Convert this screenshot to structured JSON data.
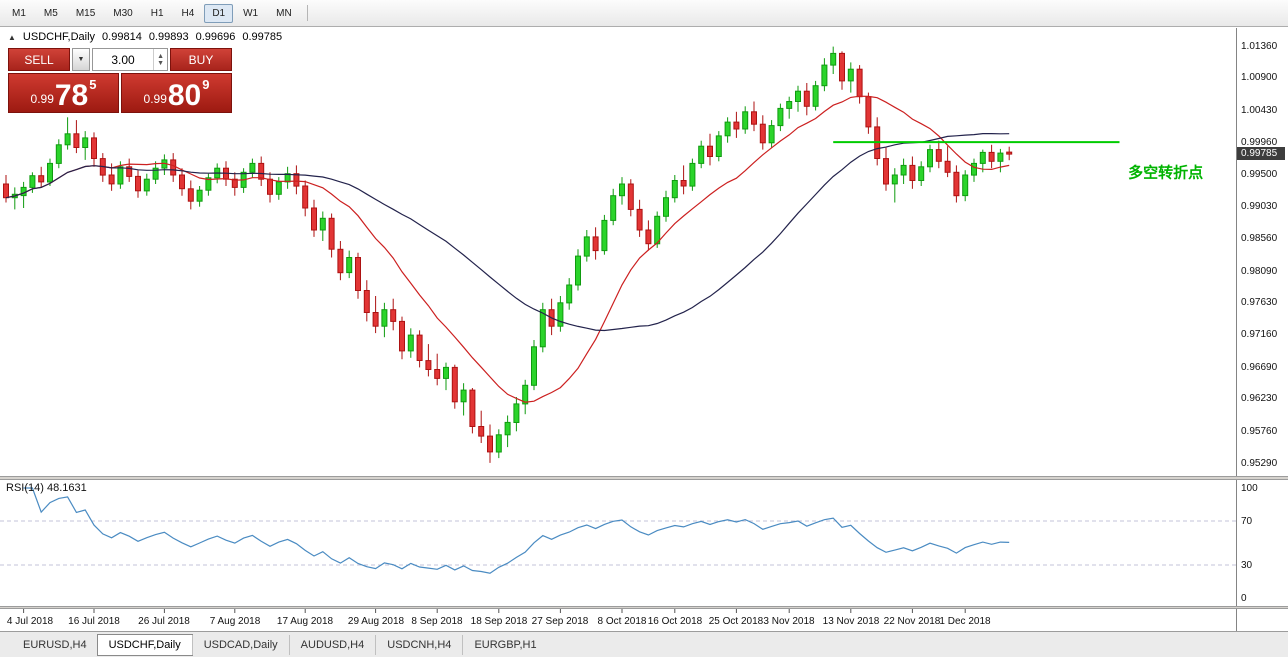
{
  "toolbar": {
    "timeframes": [
      {
        "label": "M1",
        "active": false
      },
      {
        "label": "M5",
        "active": false
      },
      {
        "label": "M15",
        "active": false
      },
      {
        "label": "M30",
        "active": false
      },
      {
        "label": "H1",
        "active": false
      },
      {
        "label": "H4",
        "active": false
      },
      {
        "label": "D1",
        "active": true
      },
      {
        "label": "W1",
        "active": false
      },
      {
        "label": "MN",
        "active": false
      }
    ]
  },
  "chart": {
    "header": {
      "collapse_icon": "▲",
      "title": "USDCHF,Daily",
      "open": "0.99814",
      "high": "0.99893",
      "low": "0.99696",
      "close": "0.99785"
    },
    "trade_panel": {
      "sell_label": "SELL",
      "buy_label": "BUY",
      "volume": "3.00",
      "dropdown_icon": "▼",
      "spinner_up": "▲",
      "spinner_down": "▼",
      "sell_price": {
        "big": "0.99",
        "pips": "78",
        "pipette": "5"
      },
      "buy_price": {
        "big": "0.99",
        "pips": "80",
        "pipette": "9"
      }
    },
    "price_axis": {
      "labels": [
        "1.01360",
        "1.00900",
        "1.00430",
        "0.99960",
        "0.99500",
        "0.99030",
        "0.98560",
        "0.98090",
        "0.97630",
        "0.97160",
        "0.96690",
        "0.96230",
        "0.95760",
        "0.95290"
      ],
      "current_label": "0.99785",
      "current_bg": "#3d3d3d"
    }
  },
  "chart_data": {
    "type": "candlestick",
    "symbol": "USDCHF",
    "timeframe": "Daily",
    "ohlc_current": {
      "open": 0.99814,
      "high": 0.99893,
      "low": 0.99696,
      "close": 0.99785
    },
    "price_range": [
      0.951,
      1.0162
    ],
    "colors": {
      "bull": "#2bd42b",
      "bull_border": "#0f9b0f",
      "bear": "#e23535",
      "bear_border": "#ad1212"
    },
    "candles": [
      [
        0.9935,
        0.9948,
        0.9908,
        0.9915
      ],
      [
        0.9915,
        0.993,
        0.9898,
        0.992
      ],
      [
        0.9918,
        0.9938,
        0.99,
        0.993
      ],
      [
        0.993,
        0.9952,
        0.9922,
        0.9947
      ],
      [
        0.9947,
        0.996,
        0.993,
        0.9938
      ],
      [
        0.9938,
        0.9972,
        0.9932,
        0.9965
      ],
      [
        0.9965,
        1.0,
        0.9958,
        0.9992
      ],
      [
        0.9992,
        1.0032,
        0.9985,
        1.0008
      ],
      [
        1.0008,
        1.0028,
        0.998,
        0.9988
      ],
      [
        0.9988,
        1.0012,
        0.997,
        1.0002
      ],
      [
        1.0002,
        1.001,
        0.996,
        0.9972
      ],
      [
        0.9972,
        0.998,
        0.9938,
        0.9948
      ],
      [
        0.9948,
        0.9965,
        0.9925,
        0.9935
      ],
      [
        0.9935,
        0.9968,
        0.9928,
        0.996
      ],
      [
        0.996,
        0.9972,
        0.9938,
        0.9946
      ],
      [
        0.9946,
        0.9955,
        0.9915,
        0.9925
      ],
      [
        0.9925,
        0.995,
        0.9918,
        0.9942
      ],
      [
        0.9942,
        0.9968,
        0.9935,
        0.9958
      ],
      [
        0.9958,
        0.9978,
        0.9948,
        0.997
      ],
      [
        0.997,
        0.998,
        0.9938,
        0.9948
      ],
      [
        0.9948,
        0.9958,
        0.9918,
        0.9928
      ],
      [
        0.9928,
        0.994,
        0.9898,
        0.991
      ],
      [
        0.991,
        0.9932,
        0.9902,
        0.9926
      ],
      [
        0.9926,
        0.995,
        0.9918,
        0.9944
      ],
      [
        0.9944,
        0.9965,
        0.9936,
        0.9958
      ],
      [
        0.9958,
        0.9968,
        0.9932,
        0.9942
      ],
      [
        0.9942,
        0.9952,
        0.9918,
        0.993
      ],
      [
        0.993,
        0.9958,
        0.9922,
        0.9952
      ],
      [
        0.9952,
        0.9972,
        0.9944,
        0.9965
      ],
      [
        0.9965,
        0.9975,
        0.9932,
        0.9942
      ],
      [
        0.9942,
        0.9952,
        0.9908,
        0.992
      ],
      [
        0.992,
        0.9945,
        0.9912,
        0.9938
      ],
      [
        0.9938,
        0.996,
        0.9928,
        0.995
      ],
      [
        0.995,
        0.9962,
        0.992,
        0.9932
      ],
      [
        0.9932,
        0.994,
        0.9888,
        0.99
      ],
      [
        0.99,
        0.9912,
        0.9858,
        0.9868
      ],
      [
        0.9868,
        0.9895,
        0.9852,
        0.9885
      ],
      [
        0.9885,
        0.9892,
        0.9828,
        0.984
      ],
      [
        0.984,
        0.9852,
        0.9795,
        0.9806
      ],
      [
        0.9806,
        0.9838,
        0.9798,
        0.9828
      ],
      [
        0.9828,
        0.9835,
        0.9768,
        0.978
      ],
      [
        0.978,
        0.9795,
        0.9735,
        0.9748
      ],
      [
        0.9748,
        0.9772,
        0.9718,
        0.9728
      ],
      [
        0.9728,
        0.9762,
        0.9712,
        0.9752
      ],
      [
        0.9752,
        0.9768,
        0.9722,
        0.9735
      ],
      [
        0.9735,
        0.9742,
        0.968,
        0.9692
      ],
      [
        0.9692,
        0.9725,
        0.9682,
        0.9715
      ],
      [
        0.9715,
        0.9722,
        0.9668,
        0.9678
      ],
      [
        0.9678,
        0.9702,
        0.9655,
        0.9665
      ],
      [
        0.9665,
        0.9688,
        0.9642,
        0.9652
      ],
      [
        0.9652,
        0.9675,
        0.9635,
        0.9668
      ],
      [
        0.9668,
        0.9672,
        0.9608,
        0.9618
      ],
      [
        0.9618,
        0.9645,
        0.9598,
        0.9635
      ],
      [
        0.9635,
        0.9638,
        0.9572,
        0.9582
      ],
      [
        0.9582,
        0.9605,
        0.9558,
        0.9568
      ],
      [
        0.9568,
        0.9585,
        0.9529,
        0.9545
      ],
      [
        0.9545,
        0.9578,
        0.9536,
        0.957
      ],
      [
        0.957,
        0.9598,
        0.9552,
        0.9588
      ],
      [
        0.9588,
        0.9625,
        0.9575,
        0.9615
      ],
      [
        0.9615,
        0.965,
        0.96,
        0.9642
      ],
      [
        0.9642,
        0.9708,
        0.9635,
        0.9698
      ],
      [
        0.9698,
        0.9762,
        0.969,
        0.9752
      ],
      [
        0.9752,
        0.9768,
        0.9715,
        0.9728
      ],
      [
        0.9728,
        0.9772,
        0.972,
        0.9762
      ],
      [
        0.9762,
        0.9798,
        0.9752,
        0.9788
      ],
      [
        0.9788,
        0.984,
        0.978,
        0.983
      ],
      [
        0.983,
        0.9868,
        0.9822,
        0.9858
      ],
      [
        0.9858,
        0.9872,
        0.9825,
        0.9838
      ],
      [
        0.9838,
        0.989,
        0.9832,
        0.9882
      ],
      [
        0.9882,
        0.9928,
        0.9875,
        0.9918
      ],
      [
        0.9918,
        0.9945,
        0.9905,
        0.9935
      ],
      [
        0.9935,
        0.9942,
        0.9888,
        0.9898
      ],
      [
        0.9898,
        0.9912,
        0.9858,
        0.9868
      ],
      [
        0.9868,
        0.9882,
        0.9838,
        0.9848
      ],
      [
        0.9848,
        0.9895,
        0.9842,
        0.9888
      ],
      [
        0.9888,
        0.9925,
        0.988,
        0.9915
      ],
      [
        0.9915,
        0.9948,
        0.9908,
        0.994
      ],
      [
        0.994,
        0.9962,
        0.992,
        0.9932
      ],
      [
        0.9932,
        0.9972,
        0.9925,
        0.9965
      ],
      [
        0.9965,
        0.9998,
        0.9958,
        0.999
      ],
      [
        0.999,
        1.0008,
        0.9962,
        0.9975
      ],
      [
        0.9975,
        1.0012,
        0.9968,
        1.0005
      ],
      [
        1.0005,
        1.0032,
        0.9995,
        1.0025
      ],
      [
        1.0025,
        1.004,
        1.0002,
        1.0015
      ],
      [
        1.0015,
        1.0048,
        1.0008,
        1.004
      ],
      [
        1.004,
        1.0055,
        1.0012,
        1.0022
      ],
      [
        1.0022,
        1.0035,
        0.9985,
        0.9995
      ],
      [
        0.9995,
        1.0028,
        0.9988,
        1.002
      ],
      [
        1.002,
        1.0052,
        1.0012,
        1.0045
      ],
      [
        1.0045,
        1.0062,
        1.003,
        1.0055
      ],
      [
        1.0055,
        1.0078,
        1.004,
        1.007
      ],
      [
        1.007,
        1.0082,
        1.0035,
        1.0048
      ],
      [
        1.0048,
        1.0085,
        1.0042,
        1.0078
      ],
      [
        1.0078,
        1.0118,
        1.007,
        1.0108
      ],
      [
        1.0108,
        1.0135,
        1.0095,
        1.0125
      ],
      [
        1.0125,
        1.0128,
        1.0072,
        1.0085
      ],
      [
        1.0085,
        1.0112,
        1.0068,
        1.0102
      ],
      [
        1.0102,
        1.0108,
        1.0052,
        1.0062
      ],
      [
        1.0062,
        1.0068,
        1.0008,
        1.0018
      ],
      [
        1.0018,
        1.0032,
        0.9962,
        0.9972
      ],
      [
        0.9972,
        0.9988,
        0.9925,
        0.9935
      ],
      [
        0.9935,
        0.9958,
        0.9908,
        0.9948
      ],
      [
        0.9948,
        0.9972,
        0.9935,
        0.9962
      ],
      [
        0.9962,
        0.9975,
        0.9928,
        0.994
      ],
      [
        0.994,
        0.9968,
        0.9932,
        0.996
      ],
      [
        0.996,
        0.9992,
        0.9952,
        0.9985
      ],
      [
        0.9985,
        0.9998,
        0.9958,
        0.9968
      ],
      [
        0.9968,
        0.999,
        0.9945,
        0.9952
      ],
      [
        0.9952,
        0.9962,
        0.9908,
        0.9918
      ],
      [
        0.9918,
        0.9955,
        0.991,
        0.9948
      ],
      [
        0.9948,
        0.9972,
        0.9938,
        0.9965
      ],
      [
        0.9965,
        0.9985,
        0.9952,
        0.9981
      ],
      [
        0.9981,
        0.9992,
        0.9958,
        0.9968
      ],
      [
        0.9968,
        0.9986,
        0.9952,
        0.998
      ],
      [
        0.99814,
        0.99893,
        0.99696,
        0.99785
      ]
    ],
    "date_labels": [
      {
        "text": "4 Jul 2018",
        "index": 2
      },
      {
        "text": "16 Jul 2018",
        "index": 10
      },
      {
        "text": "26 Jul 2018",
        "index": 18
      },
      {
        "text": "7 Aug 2018",
        "index": 26
      },
      {
        "text": "17 Aug 2018",
        "index": 34
      },
      {
        "text": "29 Aug 2018",
        "index": 42
      },
      {
        "text": "8 Sep 2018",
        "index": 49
      },
      {
        "text": "18 Sep 2018",
        "index": 56
      },
      {
        "text": "27 Sep 2018",
        "index": 63
      },
      {
        "text": "8 Oct 2018",
        "index": 70
      },
      {
        "text": "16 Oct 2018",
        "index": 76
      },
      {
        "text": "25 Oct 2018",
        "index": 83
      },
      {
        "text": "3 Nov 2018",
        "index": 89
      },
      {
        "text": "13 Nov 2018",
        "index": 96
      },
      {
        "text": "22 Nov 2018",
        "index": 103
      },
      {
        "text": "1 Dec 2018",
        "index": 109
      }
    ],
    "overlays": [
      {
        "name": "ma-fast-red",
        "type": "sma",
        "period": 13,
        "color": "#cc2020"
      },
      {
        "name": "ma-slow-dark",
        "type": "sma",
        "period": 34,
        "color": "#23234c"
      }
    ],
    "hline": {
      "price": 0.9996,
      "start_index": 94,
      "end_frac": 0.905,
      "color": "#00cc00"
    },
    "annotation": {
      "text": "多空转折点",
      "x_frac": 0.912,
      "price": 0.9952,
      "color": "#00b300"
    },
    "indicator": {
      "name": "RSI",
      "period": 14,
      "label": "RSI(14) 48.1631",
      "value": 48.1631,
      "levels": [
        100,
        70,
        30,
        0
      ],
      "dashed_levels": [
        70,
        30
      ],
      "range": [
        0,
        100
      ],
      "color": "#4a8bc2"
    }
  },
  "tabs": [
    {
      "label": "EURUSD,H4",
      "active": false
    },
    {
      "label": "USDCHF,Daily",
      "active": true
    },
    {
      "label": "USDCAD,Daily",
      "active": false
    },
    {
      "label": "AUDUSD,H4",
      "active": false
    },
    {
      "label": "USDCNH,H4",
      "active": false
    },
    {
      "label": "EURGBP,H1",
      "active": false
    }
  ]
}
